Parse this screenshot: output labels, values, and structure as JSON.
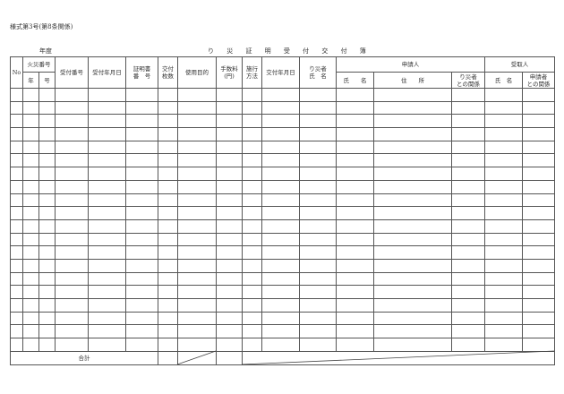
{
  "form_number": "様式第3号(第8条関係)",
  "fiscal_year_label": "年度",
  "title": "り 災 証 明 受 付 交 付 簿",
  "headers": {
    "no": "No",
    "fire_number": "火災番号",
    "fire_year": "年",
    "fire_no": "号",
    "receipt_number": "受付番号",
    "receipt_date": "受付年月日",
    "certificate_number_1": "証明書",
    "certificate_number_2": "番　号",
    "copies_1": "交付",
    "copies_2": "枚数",
    "purpose": "使用目的",
    "fee_1": "手数料",
    "fee_2": "(円)",
    "method_1": "施行",
    "method_2": "方法",
    "issue_date": "交付年月日",
    "victim_1": "り災者",
    "victim_2": "氏　名",
    "applicant": "申請人",
    "applicant_name": "氏　　名",
    "applicant_address": "住　　所",
    "applicant_relation_1": "り災者",
    "applicant_relation_2": "との関係",
    "recipient": "受取人",
    "recipient_name": "氏　名",
    "recipient_relation_1": "申請者",
    "recipient_relation_2": "との関係"
  },
  "total_label": "合計"
}
